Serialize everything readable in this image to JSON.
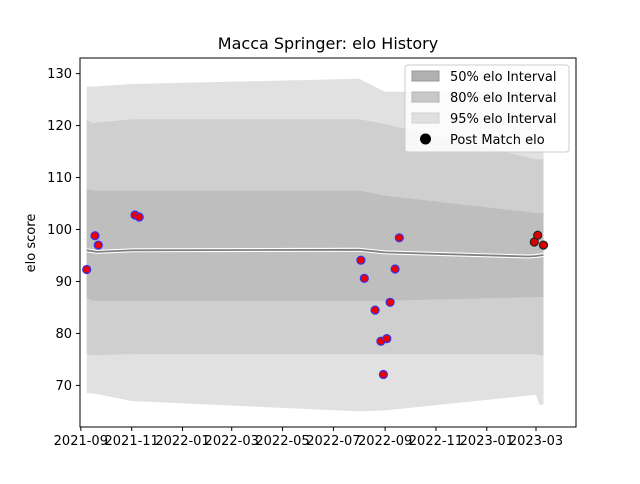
{
  "chart_data": {
    "type": "line",
    "title": "Macca Springer: elo History",
    "xlabel": "",
    "ylabel": "elo score",
    "xlim": [
      "2021-08-31",
      "2023-04-18"
    ],
    "ylim": [
      62,
      133
    ],
    "grid": false,
    "legend_position": "top-right",
    "x_ticks": [
      "2021-09",
      "2021-11",
      "2022-01",
      "2022-03",
      "2022-05",
      "2022-07",
      "2022-09",
      "2022-11",
      "2023-01",
      "2023-03"
    ],
    "x_tick_dates": [
      "2021-09-01",
      "2021-11-01",
      "2022-01-01",
      "2022-03-01",
      "2022-05-01",
      "2022-07-01",
      "2022-09-01",
      "2022-11-01",
      "2023-01-01",
      "2023-03-01"
    ],
    "y_ticks": [
      "70",
      "80",
      "90",
      "100",
      "110",
      "120",
      "130"
    ],
    "y_tick_values": [
      70,
      80,
      90,
      100,
      110,
      120,
      130
    ],
    "legend": [
      {
        "label": "50% elo Interval",
        "color": "#b0b0b0"
      },
      {
        "label": "80% elo Interval",
        "color": "#c8c8c8"
      },
      {
        "label": "95% elo Interval",
        "color": "#e0e0e0"
      },
      {
        "label": "Post Match elo",
        "color": "#000000"
      }
    ],
    "series": [
      {
        "name": "95% elo Interval",
        "kind": "band",
        "color": "#e1e1e1",
        "x": [
          "2021-09-08",
          "2021-09-15",
          "2021-11-01",
          "2022-08-01",
          "2022-09-01",
          "2023-03-01",
          "2023-03-05",
          "2023-03-10"
        ],
        "lower": [
          68.5,
          68.5,
          67.0,
          65.0,
          65.2,
          68.2,
          66.3,
          66.3
        ],
        "upper": [
          127.5,
          127.5,
          128.0,
          129.0,
          126.5,
          126.5,
          125.5,
          125.5
        ]
      },
      {
        "name": "80% elo Interval",
        "kind": "band",
        "color": "#cfcfcf",
        "x": [
          "2021-09-08",
          "2021-09-15",
          "2021-11-01",
          "2022-08-01",
          "2022-09-01",
          "2023-03-01",
          "2023-03-05",
          "2023-03-10"
        ],
        "lower": [
          76.0,
          75.8,
          76.0,
          76.0,
          76.0,
          76.0,
          75.8,
          75.8
        ],
        "upper": [
          121.0,
          120.5,
          121.2,
          121.2,
          120.3,
          113.5,
          113.5,
          113.5
        ]
      },
      {
        "name": "50% elo Interval",
        "kind": "band",
        "color": "#bebebe",
        "x": [
          "2021-09-08",
          "2021-09-15",
          "2021-11-01",
          "2022-08-01",
          "2022-09-01",
          "2023-03-01",
          "2023-03-05",
          "2023-03-10"
        ],
        "lower": [
          86.8,
          86.3,
          86.3,
          86.3,
          86.3,
          87.0,
          87.0,
          87.0
        ],
        "upper": [
          107.8,
          107.5,
          107.5,
          107.5,
          106.5,
          103.2,
          103.2,
          103.2
        ]
      },
      {
        "name": "Expected elo",
        "kind": "line",
        "color": "#808080",
        "x": [
          "2021-09-08",
          "2021-09-20",
          "2021-11-01",
          "2022-08-01",
          "2022-09-01",
          "2023-02-20",
          "2023-03-01",
          "2023-03-10"
        ],
        "y": [
          96.0,
          95.7,
          96.0,
          96.1,
          95.6,
          94.8,
          94.9,
          95.1
        ]
      },
      {
        "name": "Post Match elo",
        "kind": "scatter",
        "face": "#ee0000",
        "edge": "#3333ee",
        "x": [
          "2021-09-08",
          "2021-09-18",
          "2021-09-22",
          "2021-11-05",
          "2021-11-10",
          "2022-08-03",
          "2022-08-07",
          "2022-08-20",
          "2022-08-27",
          "2022-08-30",
          "2022-09-03",
          "2022-09-07",
          "2022-09-13",
          "2022-09-18"
        ],
        "y": [
          92.3,
          98.8,
          97.0,
          102.8,
          102.4,
          94.1,
          90.6,
          84.5,
          78.5,
          72.1,
          79.0,
          86.0,
          92.4,
          98.4
        ]
      },
      {
        "name": "Post Match elo",
        "kind": "scatter",
        "face": "#dd0000",
        "edge": "#222222",
        "x": [
          "2023-02-27",
          "2023-03-03",
          "2023-03-10"
        ],
        "y": [
          97.6,
          98.9,
          97.0
        ]
      }
    ]
  }
}
